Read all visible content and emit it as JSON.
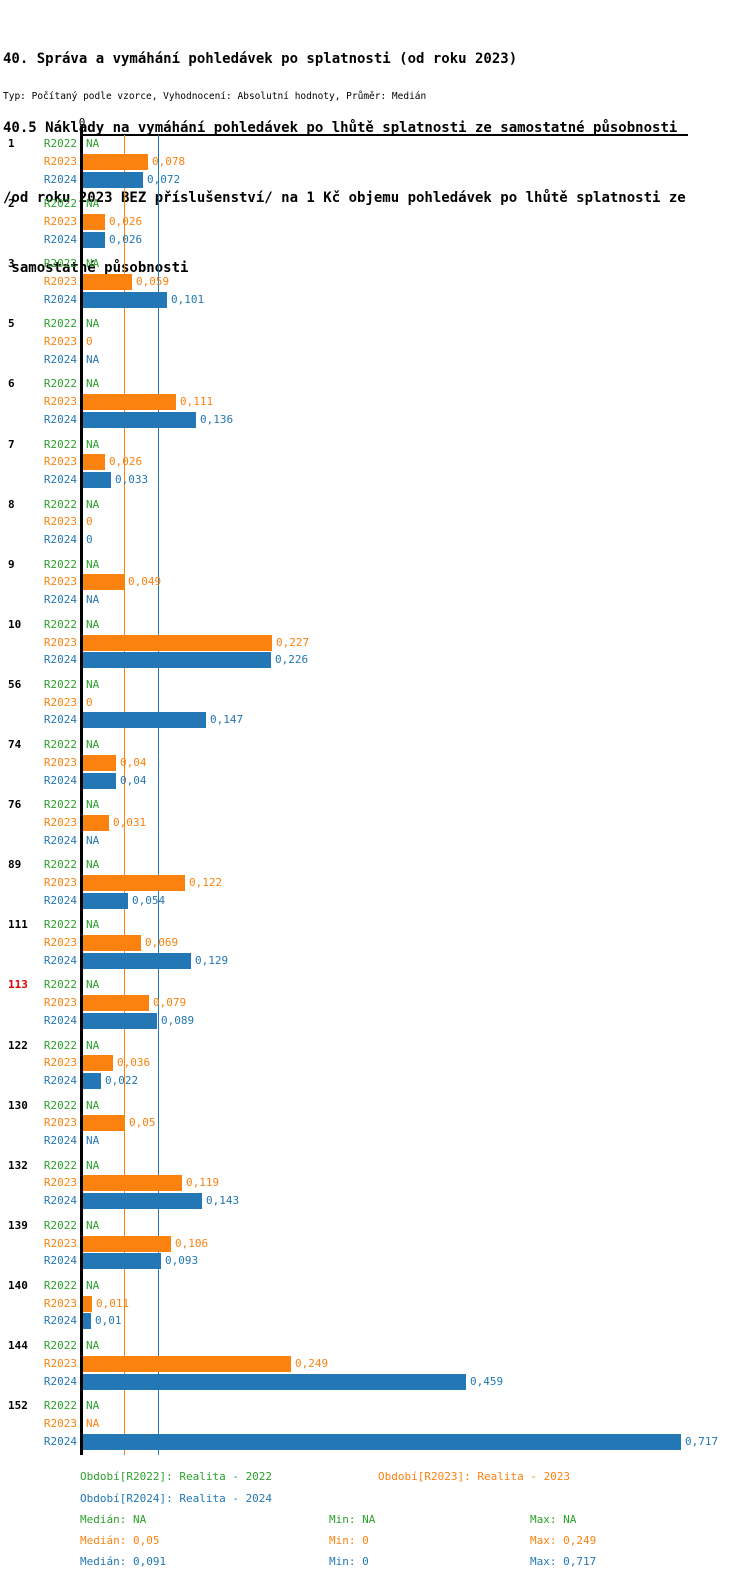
{
  "header": {
    "title_lines": [
      "40. Správa a vymáhání pohledávek po splatnosti (od roku 2023)",
      "40.5 Náklady na vymáhání pohledávek po lhůtě splatnosti ze samostatné působnosti",
      "/od roku 2023 BEZ příslušenství/ na 1 Kč objemu pohledávek po lhůtě splatnosti ze",
      " samostatné působnosti"
    ],
    "meta_line": "Typ: Počítaný podle vzorce, Vyhodnocení: Absolutní hodnoty, Průměr: Medián"
  },
  "colors": {
    "R2022": "#2ca02c",
    "R2023": "#fb820f",
    "R2024": "#2277b4",
    "highlight": "#e00000",
    "axis": "#000000"
  },
  "chart_data": {
    "type": "bar",
    "orientation": "horizontal",
    "axis": {
      "zero_label": "0"
    },
    "series": [
      "R2022",
      "R2023",
      "R2024"
    ],
    "decimal_separator": ",",
    "reference_lines": [
      {
        "series": "R2023",
        "value": 0.05
      },
      {
        "series": "R2024",
        "value": 0.091
      }
    ],
    "groups": [
      {
        "id": "1",
        "highlight": false,
        "rows": [
          {
            "series": "R2022",
            "value": null,
            "display": "NA"
          },
          {
            "series": "R2023",
            "value": 0.078,
            "display": "0,078"
          },
          {
            "series": "R2024",
            "value": 0.072,
            "display": "0,072"
          }
        ]
      },
      {
        "id": "2",
        "highlight": false,
        "rows": [
          {
            "series": "R2022",
            "value": null,
            "display": "NA"
          },
          {
            "series": "R2023",
            "value": 0.026,
            "display": "0,026"
          },
          {
            "series": "R2024",
            "value": 0.026,
            "display": "0,026"
          }
        ]
      },
      {
        "id": "3",
        "highlight": false,
        "rows": [
          {
            "series": "R2022",
            "value": null,
            "display": "NA"
          },
          {
            "series": "R2023",
            "value": 0.059,
            "display": "0,059"
          },
          {
            "series": "R2024",
            "value": 0.101,
            "display": "0,101"
          }
        ]
      },
      {
        "id": "5",
        "highlight": false,
        "rows": [
          {
            "series": "R2022",
            "value": null,
            "display": "NA"
          },
          {
            "series": "R2023",
            "value": 0,
            "display": "0"
          },
          {
            "series": "R2024",
            "value": null,
            "display": "NA"
          }
        ]
      },
      {
        "id": "6",
        "highlight": false,
        "rows": [
          {
            "series": "R2022",
            "value": null,
            "display": "NA"
          },
          {
            "series": "R2023",
            "value": 0.111,
            "display": "0,111"
          },
          {
            "series": "R2024",
            "value": 0.136,
            "display": "0,136"
          }
        ]
      },
      {
        "id": "7",
        "highlight": false,
        "rows": [
          {
            "series": "R2022",
            "value": null,
            "display": "NA"
          },
          {
            "series": "R2023",
            "value": 0.026,
            "display": "0,026"
          },
          {
            "series": "R2024",
            "value": 0.033,
            "display": "0,033"
          }
        ]
      },
      {
        "id": "8",
        "highlight": false,
        "rows": [
          {
            "series": "R2022",
            "value": null,
            "display": "NA"
          },
          {
            "series": "R2023",
            "value": 0,
            "display": "0"
          },
          {
            "series": "R2024",
            "value": 0,
            "display": "0"
          }
        ]
      },
      {
        "id": "9",
        "highlight": false,
        "rows": [
          {
            "series": "R2022",
            "value": null,
            "display": "NA"
          },
          {
            "series": "R2023",
            "value": 0.049,
            "display": "0,049"
          },
          {
            "series": "R2024",
            "value": null,
            "display": "NA"
          }
        ]
      },
      {
        "id": "10",
        "highlight": false,
        "rows": [
          {
            "series": "R2022",
            "value": null,
            "display": "NA"
          },
          {
            "series": "R2023",
            "value": 0.227,
            "display": "0,227"
          },
          {
            "series": "R2024",
            "value": 0.226,
            "display": "0,226"
          }
        ]
      },
      {
        "id": "56",
        "highlight": false,
        "rows": [
          {
            "series": "R2022",
            "value": null,
            "display": "NA"
          },
          {
            "series": "R2023",
            "value": 0,
            "display": "0"
          },
          {
            "series": "R2024",
            "value": 0.147,
            "display": "0,147"
          }
        ]
      },
      {
        "id": "74",
        "highlight": false,
        "rows": [
          {
            "series": "R2022",
            "value": null,
            "display": "NA"
          },
          {
            "series": "R2023",
            "value": 0.04,
            "display": "0,04"
          },
          {
            "series": "R2024",
            "value": 0.04,
            "display": "0,04"
          }
        ]
      },
      {
        "id": "76",
        "highlight": false,
        "rows": [
          {
            "series": "R2022",
            "value": null,
            "display": "NA"
          },
          {
            "series": "R2023",
            "value": 0.031,
            "display": "0,031"
          },
          {
            "series": "R2024",
            "value": null,
            "display": "NA"
          }
        ]
      },
      {
        "id": "89",
        "highlight": false,
        "rows": [
          {
            "series": "R2022",
            "value": null,
            "display": "NA"
          },
          {
            "series": "R2023",
            "value": 0.122,
            "display": "0,122"
          },
          {
            "series": "R2024",
            "value": 0.054,
            "display": "0,054"
          }
        ]
      },
      {
        "id": "111",
        "highlight": false,
        "rows": [
          {
            "series": "R2022",
            "value": null,
            "display": "NA"
          },
          {
            "series": "R2023",
            "value": 0.069,
            "display": "0,069"
          },
          {
            "series": "R2024",
            "value": 0.129,
            "display": "0,129"
          }
        ]
      },
      {
        "id": "113",
        "highlight": true,
        "rows": [
          {
            "series": "R2022",
            "value": null,
            "display": "NA"
          },
          {
            "series": "R2023",
            "value": 0.079,
            "display": "0,079"
          },
          {
            "series": "R2024",
            "value": 0.089,
            "display": "0,089"
          }
        ]
      },
      {
        "id": "122",
        "highlight": false,
        "rows": [
          {
            "series": "R2022",
            "value": null,
            "display": "NA"
          },
          {
            "series": "R2023",
            "value": 0.036,
            "display": "0,036"
          },
          {
            "series": "R2024",
            "value": 0.022,
            "display": "0,022"
          }
        ]
      },
      {
        "id": "130",
        "highlight": false,
        "rows": [
          {
            "series": "R2022",
            "value": null,
            "display": "NA"
          },
          {
            "series": "R2023",
            "value": 0.05,
            "display": "0,05"
          },
          {
            "series": "R2024",
            "value": null,
            "display": "NA"
          }
        ]
      },
      {
        "id": "132",
        "highlight": false,
        "rows": [
          {
            "series": "R2022",
            "value": null,
            "display": "NA"
          },
          {
            "series": "R2023",
            "value": 0.119,
            "display": "0,119"
          },
          {
            "series": "R2024",
            "value": 0.143,
            "display": "0,143"
          }
        ]
      },
      {
        "id": "139",
        "highlight": false,
        "rows": [
          {
            "series": "R2022",
            "value": null,
            "display": "NA"
          },
          {
            "series": "R2023",
            "value": 0.106,
            "display": "0,106"
          },
          {
            "series": "R2024",
            "value": 0.093,
            "display": "0,093"
          }
        ]
      },
      {
        "id": "140",
        "highlight": false,
        "rows": [
          {
            "series": "R2022",
            "value": null,
            "display": "NA"
          },
          {
            "series": "R2023",
            "value": 0.011,
            "display": "0,011"
          },
          {
            "series": "R2024",
            "value": 0.01,
            "display": "0,01"
          }
        ]
      },
      {
        "id": "144",
        "highlight": false,
        "rows": [
          {
            "series": "R2022",
            "value": null,
            "display": "NA"
          },
          {
            "series": "R2023",
            "value": 0.249,
            "display": "0,249"
          },
          {
            "series": "R2024",
            "value": 0.459,
            "display": "0,459"
          }
        ]
      },
      {
        "id": "152",
        "highlight": false,
        "rows": [
          {
            "series": "R2022",
            "value": null,
            "display": "NA"
          },
          {
            "series": "R2023",
            "value": null,
            "display": "NA"
          },
          {
            "series": "R2024",
            "value": 0.717,
            "display": "0,717"
          }
        ]
      }
    ],
    "legend": [
      {
        "series": "R2022",
        "label": "Období[R2022]: Realita - 2022"
      },
      {
        "series": "R2023",
        "label": "Období[R2023]: Realita - 2023"
      },
      {
        "series": "R2024",
        "label": "Období[R2024]: Realita - 2024"
      }
    ],
    "stats": [
      {
        "series": "R2022",
        "median": "Medián: NA",
        "min": "Min: NA",
        "max": "Max: NA"
      },
      {
        "series": "R2023",
        "median": "Medián: 0,05",
        "min": "Min: 0",
        "max": "Max: 0,249"
      },
      {
        "series": "R2024",
        "median": "Medián: 0,091",
        "min": "Min: 0",
        "max": "Max: 0,717"
      }
    ]
  }
}
